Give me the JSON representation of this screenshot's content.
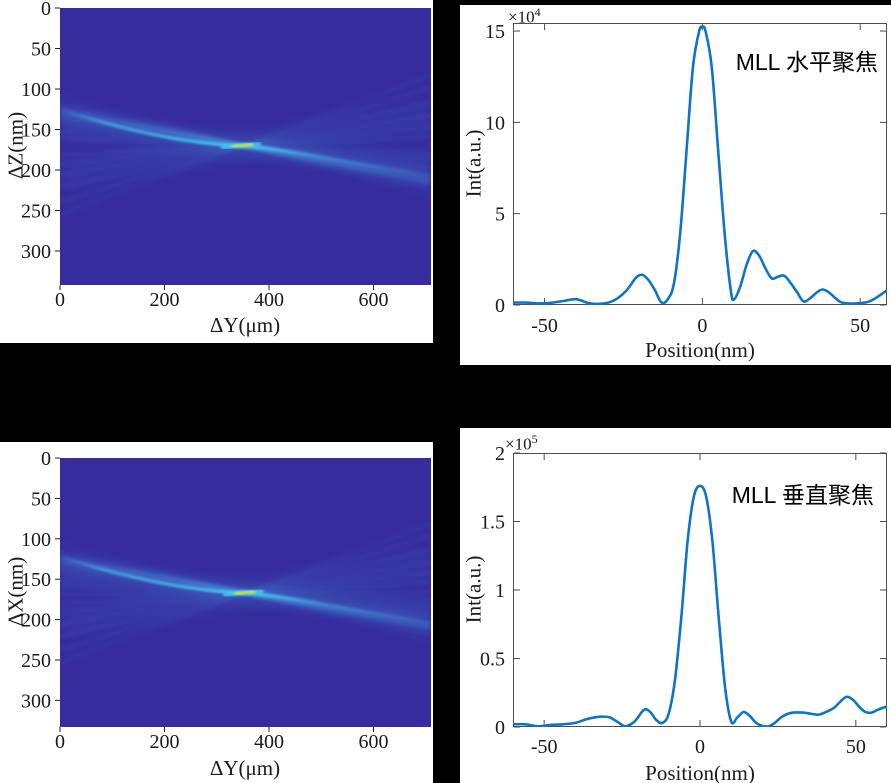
{
  "figure": {
    "background": "#000000",
    "panel_background": "#ffffff"
  },
  "colors": {
    "curve_blue": "#0e74c6",
    "axis_line": "#4d4d4d",
    "tick_mark": "#222222",
    "text": "#1a1a1a",
    "heatmap_background": "#362c9e",
    "heatmap_streak": "#4aa8e8",
    "heatmap_arc": "#46c8f0",
    "heatmap_focus_core": "#d6e437"
  },
  "chart_data": [
    {
      "id": "heatmap-horizontal",
      "type": "heatmap",
      "xlabel": "ΔY(μm)",
      "ylabel": "ΔZ(nm)",
      "xticks": [
        0,
        200,
        400,
        600
      ],
      "yticks": [
        0,
        50,
        100,
        150,
        200,
        250,
        300
      ],
      "xlim": [
        0,
        710
      ],
      "ylim": [
        0,
        342
      ],
      "grid": false,
      "focus_point": {
        "x_um": 350,
        "y_nm": 170
      },
      "beams_left_edge": [
        {
          "y": 108,
          "w": 2,
          "o": 0.1
        },
        {
          "y": 117,
          "w": 2.5,
          "o": 0.18
        },
        {
          "y": 125,
          "w": 3,
          "o": 0.42
        },
        {
          "y": 131,
          "w": 2.5,
          "o": 0.55
        },
        {
          "y": 137,
          "w": 2,
          "o": 0.32
        },
        {
          "y": 144,
          "w": 2,
          "o": 0.22
        },
        {
          "y": 152,
          "w": 2,
          "o": 0.18
        },
        {
          "y": 160,
          "w": 2,
          "o": 0.14
        },
        {
          "y": 170,
          "w": 3,
          "o": 0.12
        },
        {
          "y": 181,
          "w": 2.5,
          "o": 0.15
        },
        {
          "y": 193,
          "w": 2.5,
          "o": 0.14
        },
        {
          "y": 206,
          "w": 3,
          "o": 0.12
        },
        {
          "y": 222,
          "w": 3,
          "o": 0.1
        },
        {
          "y": 240,
          "w": 4,
          "o": 0.09
        },
        {
          "y": 255,
          "w": 4,
          "o": 0.07
        },
        {
          "y": 150,
          "w": 26,
          "o": 0.07
        },
        {
          "y": 205,
          "w": 32,
          "o": 0.06
        },
        {
          "y": 130,
          "w": 14,
          "o": 0.1
        }
      ]
    },
    {
      "id": "profile-horizontal",
      "type": "line",
      "annotation": "MLL 水平聚焦",
      "exponent_base": "×10",
      "exponent_power": "4",
      "xlabel": "Position(nm)",
      "ylabel": "Int(a.u.)",
      "xticks": [
        -50,
        0,
        50
      ],
      "yticks": [
        0,
        5,
        10,
        15
      ],
      "xlim": [
        -60,
        58.5
      ],
      "ylim": [
        0,
        15.44
      ],
      "grid": false,
      "unit_scale": "1e4",
      "peak": {
        "x": 0,
        "y": 15.2
      },
      "points": [
        [
          -60,
          0.13
        ],
        [
          -56,
          0.13
        ],
        [
          -52,
          0.09
        ],
        [
          -48,
          0.12
        ],
        [
          -44,
          0.22
        ],
        [
          -40,
          0.32
        ],
        [
          -36,
          0.1
        ],
        [
          -33,
          0.06
        ],
        [
          -30,
          0.12
        ],
        [
          -27,
          0.35
        ],
        [
          -24,
          0.8
        ],
        [
          -21,
          1.5
        ],
        [
          -19,
          1.65
        ],
        [
          -17,
          1.35
        ],
        [
          -15,
          0.8
        ],
        [
          -13,
          0.15
        ],
        [
          -11,
          0.3
        ],
        [
          -9,
          1.2
        ],
        [
          -7,
          4.0
        ],
        [
          -5,
          8.5
        ],
        [
          -3,
          13.0
        ],
        [
          -1,
          15.0
        ],
        [
          0,
          15.2
        ],
        [
          1,
          15.0
        ],
        [
          3,
          13.0
        ],
        [
          5,
          8.5
        ],
        [
          7,
          4.0
        ],
        [
          9,
          0.8
        ],
        [
          10,
          0.3
        ],
        [
          12,
          1.0
        ],
        [
          14,
          2.2
        ],
        [
          16,
          2.95
        ],
        [
          18,
          2.7
        ],
        [
          20,
          2.0
        ],
        [
          22,
          1.45
        ],
        [
          24,
          1.55
        ],
        [
          26,
          1.6
        ],
        [
          28,
          1.2
        ],
        [
          30,
          0.7
        ],
        [
          32,
          0.2
        ],
        [
          34,
          0.35
        ],
        [
          36,
          0.65
        ],
        [
          38,
          0.85
        ],
        [
          40,
          0.7
        ],
        [
          42,
          0.4
        ],
        [
          44,
          0.15
        ],
        [
          47,
          0.08
        ],
        [
          50,
          0.1
        ],
        [
          53,
          0.2
        ],
        [
          56,
          0.5
        ],
        [
          58,
          0.75
        ],
        [
          60,
          0.95
        ]
      ]
    },
    {
      "id": "heatmap-vertical",
      "type": "heatmap",
      "xlabel": "ΔY(μm)",
      "ylabel": "ΔX(nm)",
      "xticks": [
        0,
        200,
        400,
        600
      ],
      "yticks": [
        0,
        50,
        100,
        150,
        200,
        250,
        300
      ],
      "xlim": [
        0,
        710
      ],
      "ylim": [
        0,
        333
      ],
      "grid": false,
      "focus_point": {
        "x_um": 355,
        "y_nm": 167
      },
      "beams_left_edge": [
        {
          "y": 106,
          "w": 2,
          "o": 0.1
        },
        {
          "y": 115,
          "w": 2.5,
          "o": 0.18
        },
        {
          "y": 123,
          "w": 3,
          "o": 0.45
        },
        {
          "y": 129,
          "w": 2.5,
          "o": 0.55
        },
        {
          "y": 136,
          "w": 2,
          "o": 0.3
        },
        {
          "y": 143,
          "w": 2,
          "o": 0.22
        },
        {
          "y": 151,
          "w": 2,
          "o": 0.18
        },
        {
          "y": 159,
          "w": 2,
          "o": 0.14
        },
        {
          "y": 169,
          "w": 3,
          "o": 0.12
        },
        {
          "y": 180,
          "w": 2.5,
          "o": 0.15
        },
        {
          "y": 192,
          "w": 2.5,
          "o": 0.14
        },
        {
          "y": 205,
          "w": 3,
          "o": 0.12
        },
        {
          "y": 221,
          "w": 3,
          "o": 0.1
        },
        {
          "y": 238,
          "w": 4,
          "o": 0.09
        },
        {
          "y": 253,
          "w": 4,
          "o": 0.07
        },
        {
          "y": 148,
          "w": 26,
          "o": 0.07
        },
        {
          "y": 203,
          "w": 32,
          "o": 0.06
        },
        {
          "y": 128,
          "w": 14,
          "o": 0.1
        }
      ]
    },
    {
      "id": "profile-vertical",
      "type": "line",
      "annotation": "MLL 垂直聚焦",
      "exponent_base": "×10",
      "exponent_power": "5",
      "xlabel": "Position(nm)",
      "ylabel": "Int(a.u.)",
      "xticks": [
        -50,
        0,
        50
      ],
      "yticks": [
        0,
        0.5,
        1,
        1.5,
        2
      ],
      "xlim": [
        -60,
        60
      ],
      "ylim": [
        0,
        2
      ],
      "grid": false,
      "unit_scale": "1e5",
      "peak": {
        "x": 0,
        "y": 1.76
      },
      "points": [
        [
          -60,
          0.02
        ],
        [
          -56,
          0.02
        ],
        [
          -52,
          0.005
        ],
        [
          -48,
          0.015
        ],
        [
          -44,
          0.02
        ],
        [
          -40,
          0.03
        ],
        [
          -36,
          0.06
        ],
        [
          -32,
          0.075
        ],
        [
          -29,
          0.07
        ],
        [
          -26,
          0.03
        ],
        [
          -24,
          0.005
        ],
        [
          -21,
          0.04
        ],
        [
          -18,
          0.125
        ],
        [
          -16,
          0.11
        ],
        [
          -14,
          0.05
        ],
        [
          -12,
          0.03
        ],
        [
          -10,
          0.1
        ],
        [
          -8,
          0.35
        ],
        [
          -6,
          0.8
        ],
        [
          -4,
          1.35
        ],
        [
          -2,
          1.68
        ],
        [
          0,
          1.76
        ],
        [
          2,
          1.68
        ],
        [
          4,
          1.35
        ],
        [
          6,
          0.8
        ],
        [
          8,
          0.3
        ],
        [
          10,
          0.04
        ],
        [
          12,
          0.07
        ],
        [
          14,
          0.11
        ],
        [
          16,
          0.08
        ],
        [
          18,
          0.03
        ],
        [
          20,
          0.008
        ],
        [
          22,
          0.005
        ],
        [
          24,
          0.03
        ],
        [
          26,
          0.07
        ],
        [
          28,
          0.095
        ],
        [
          30,
          0.105
        ],
        [
          33,
          0.105
        ],
        [
          36,
          0.095
        ],
        [
          38,
          0.09
        ],
        [
          40,
          0.105
        ],
        [
          43,
          0.14
        ],
        [
          45,
          0.185
        ],
        [
          47,
          0.22
        ],
        [
          49,
          0.2
        ],
        [
          51,
          0.15
        ],
        [
          53,
          0.11
        ],
        [
          55,
          0.105
        ],
        [
          57,
          0.125
        ],
        [
          60,
          0.15
        ]
      ]
    }
  ]
}
